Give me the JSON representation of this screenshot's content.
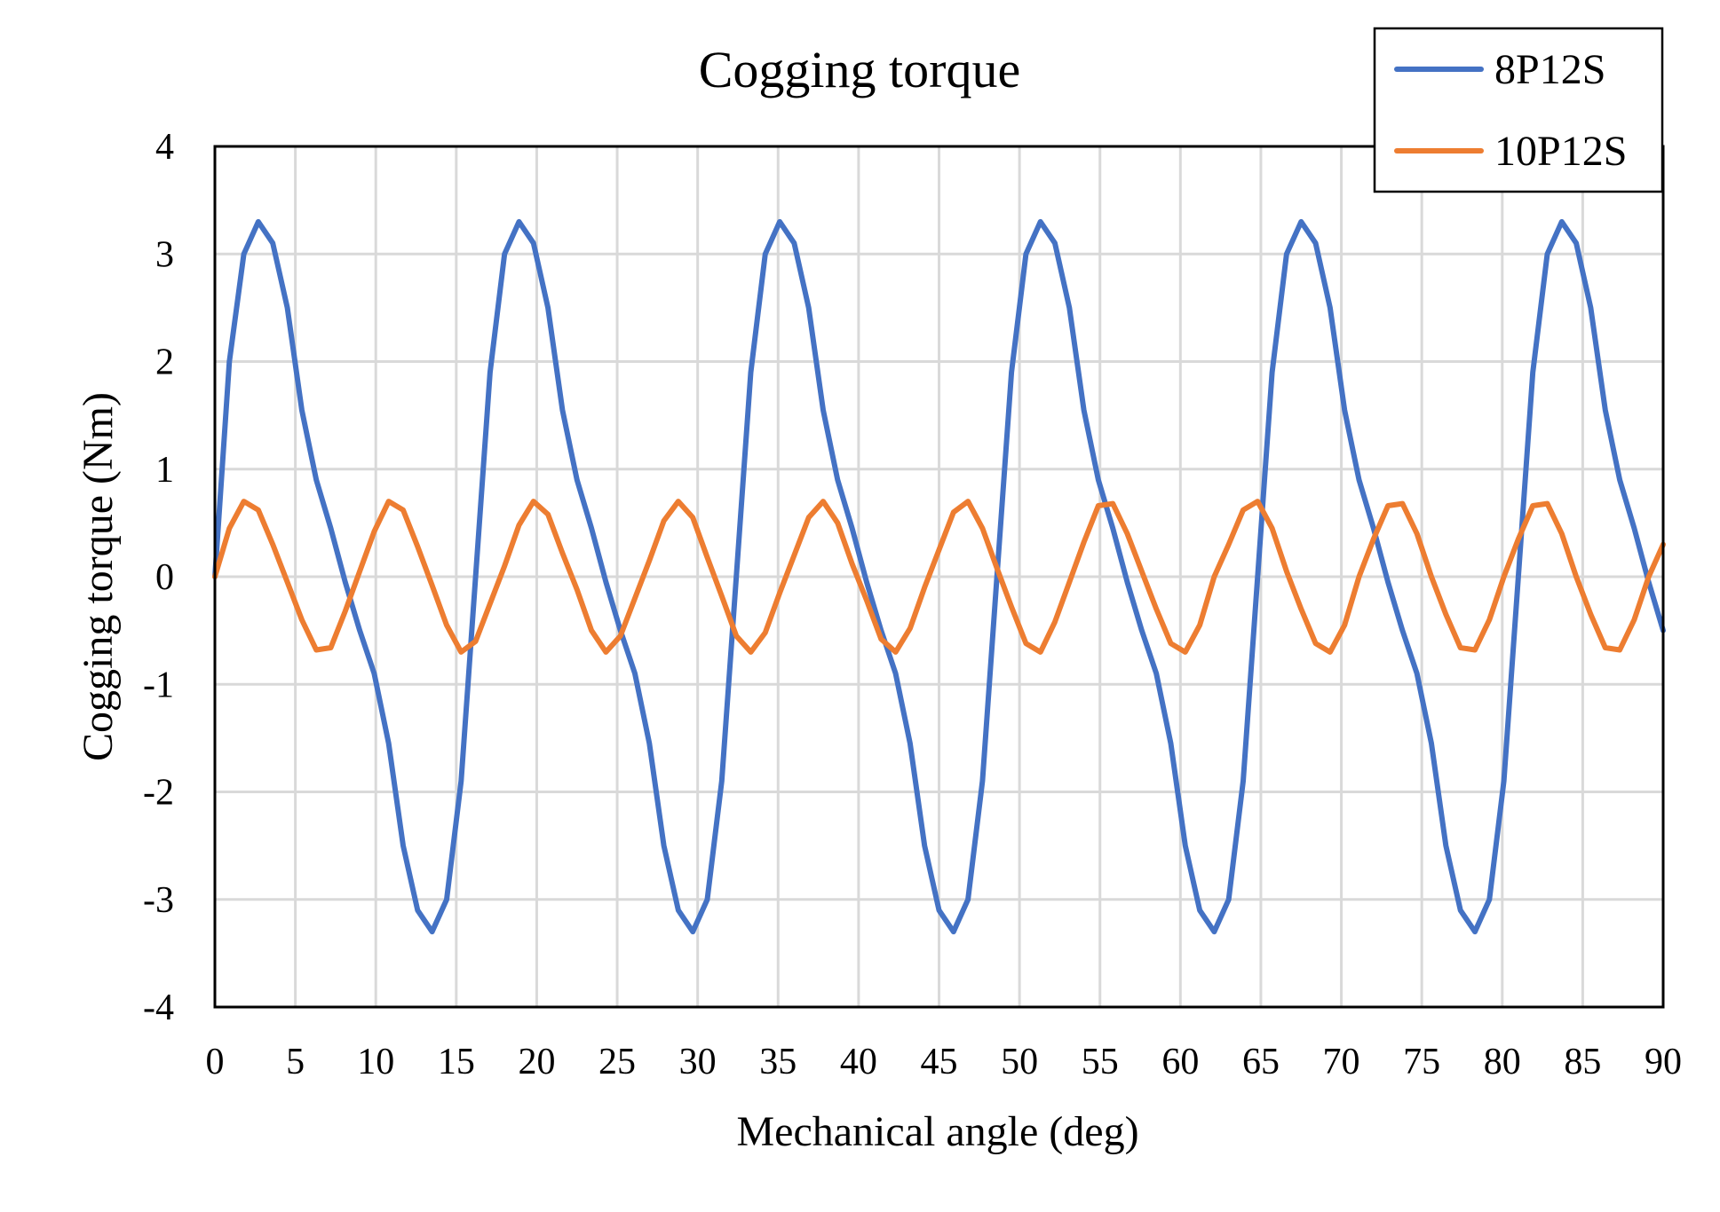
{
  "chart_data": {
    "type": "line",
    "title": "Cogging torque",
    "xlabel": "Mechanical angle (deg)",
    "ylabel": "Cogging torque (Nm)",
    "xlim": [
      0,
      90
    ],
    "ylim": [
      -4,
      4
    ],
    "x_ticks": [
      0,
      5,
      10,
      15,
      20,
      25,
      30,
      35,
      40,
      45,
      50,
      55,
      60,
      65,
      70,
      75,
      80,
      85,
      90
    ],
    "y_ticks": [
      -4,
      -3,
      -2,
      -1,
      0,
      1,
      2,
      3,
      4
    ],
    "grid": true,
    "legend_position": "top-right",
    "x": [
      0,
      0.9,
      1.8,
      2.7,
      3.6,
      4.5,
      5.4,
      6.3,
      7.2,
      8.1,
      9.0,
      9.9,
      10.8,
      11.7,
      12.6,
      13.5,
      14.4,
      15.3,
      16.2,
      17.1,
      18.0,
      18.9,
      19.8,
      20.7,
      21.6,
      22.5,
      23.4,
      24.3,
      25.2,
      26.1,
      27.0,
      27.9,
      28.8,
      29.7,
      30.6,
      31.5,
      32.4,
      33.3,
      34.2,
      35.1,
      36.0,
      36.9,
      37.8,
      38.7,
      39.6,
      40.5,
      41.4,
      42.3,
      43.2,
      44.1,
      45.0,
      45.9,
      46.8,
      47.7,
      48.6,
      49.5,
      50.4,
      51.3,
      52.2,
      53.1,
      54.0,
      54.9,
      55.8,
      56.7,
      57.6,
      58.5,
      59.4,
      60.3,
      61.2,
      62.1,
      63.0,
      63.9,
      64.8,
      65.7,
      66.6,
      67.5,
      68.4,
      69.3,
      70.2,
      71.1,
      72.0,
      72.9,
      73.8,
      74.7,
      75.6,
      76.5,
      77.4,
      78.3,
      79.2,
      80.1,
      81.0,
      81.9,
      82.8,
      83.7,
      84.6,
      85.5,
      86.4,
      87.3,
      88.2,
      89.1,
      90.0
    ],
    "series": [
      {
        "name": "8P12S",
        "color": "#4472C4",
        "values": [
          0.0,
          2.0,
          3.0,
          3.3,
          3.1,
          2.5,
          1.55,
          0.9,
          0.45,
          -0.05,
          -0.5,
          -0.9,
          -1.55,
          -2.5,
          -3.1,
          -3.3,
          -3.0,
          -1.9,
          0.0,
          1.9,
          3.0,
          3.3,
          3.1,
          2.5,
          1.55,
          0.9,
          0.45,
          -0.05,
          -0.5,
          -0.9,
          -1.55,
          -2.5,
          -3.1,
          -3.3,
          -3.0,
          -1.9,
          0.0,
          1.9,
          3.0,
          3.3,
          3.1,
          2.5,
          1.55,
          0.9,
          0.45,
          -0.05,
          -0.5,
          -0.9,
          -1.55,
          -2.5,
          -3.1,
          -3.3,
          -3.0,
          -1.9,
          0.0,
          1.9,
          3.0,
          3.3,
          3.1,
          2.5,
          1.55,
          0.9,
          0.45,
          -0.05,
          -0.5,
          -0.9,
          -1.55,
          -2.5,
          -3.1,
          -3.3,
          -3.0,
          -1.9,
          0.0,
          1.9,
          3.0,
          3.3,
          3.1,
          2.5,
          1.55,
          0.9,
          0.45,
          -0.05,
          -0.5,
          -0.9,
          -1.55,
          -2.5,
          -3.1,
          -3.3,
          -3.0,
          -1.9,
          0.0,
          1.9,
          3.0,
          3.3,
          3.1,
          2.5,
          1.55,
          0.9,
          0.45,
          -0.05,
          -0.5
        ]
      },
      {
        "name": "10P12S",
        "color": "#ED7D31",
        "values": [
          0.0,
          0.45,
          0.7,
          0.62,
          0.3,
          -0.05,
          -0.4,
          -0.68,
          -0.66,
          -0.32,
          0.05,
          0.42,
          0.7,
          0.62,
          0.28,
          -0.08,
          -0.45,
          -0.7,
          -0.6,
          -0.25,
          0.1,
          0.48,
          0.7,
          0.58,
          0.22,
          -0.12,
          -0.5,
          -0.7,
          -0.55,
          -0.2,
          0.15,
          0.52,
          0.7,
          0.55,
          0.18,
          -0.18,
          -0.55,
          -0.7,
          -0.52,
          -0.15,
          0.2,
          0.55,
          0.7,
          0.5,
          0.12,
          -0.22,
          -0.58,
          -0.7,
          -0.48,
          -0.1,
          0.25,
          0.6,
          0.7,
          0.45,
          0.08,
          -0.28,
          -0.62,
          -0.7,
          -0.42,
          -0.05,
          0.32,
          0.66,
          0.68,
          0.4,
          0.05,
          -0.3,
          -0.62,
          -0.7,
          -0.45,
          0.0,
          0.3,
          0.62,
          0.7,
          0.45,
          0.05,
          -0.3,
          -0.62,
          -0.7,
          -0.45,
          0.0,
          0.35,
          0.66,
          0.68,
          0.4,
          0.0,
          -0.35,
          -0.66,
          -0.68,
          -0.4,
          0.0,
          0.35,
          0.66,
          0.68,
          0.4,
          0.0,
          -0.35,
          -0.66,
          -0.68,
          -0.4,
          0.0,
          0.3
        ]
      }
    ]
  }
}
